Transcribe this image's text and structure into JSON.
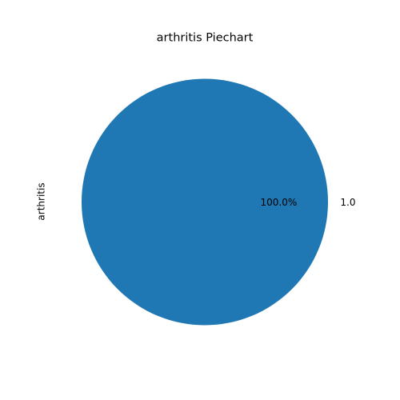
{
  "chart_data": {
    "type": "pie",
    "title": "arthritis Piechart",
    "ylabel": "arthritis",
    "xlabel": "",
    "slices": [
      {
        "label": "1.0",
        "value": 1.0,
        "percent_label": "100.0%",
        "color": "#1f77b4"
      }
    ],
    "start_angle_deg": 180,
    "legend": "none"
  }
}
